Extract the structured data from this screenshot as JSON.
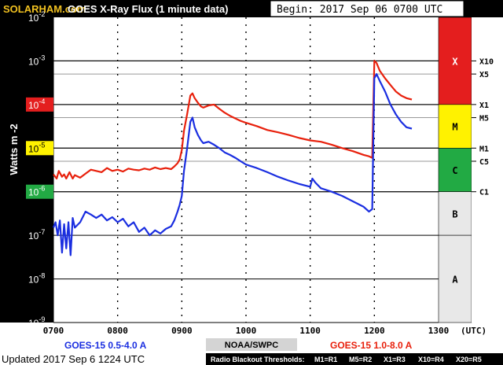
{
  "header": {
    "logo_text": "SOLARHAM.com",
    "title": "GOES X-Ray Flux (1 minute data)",
    "begin": "Begin:  2017 Sep 06 0700 UTC"
  },
  "footer": {
    "left_series": "GOES-15 0.5-4.0 A",
    "center": "NOAA/SWPC",
    "right_series": "GOES-15 1.0-8.0 A",
    "updated": "Updated 2017 Sep  6 1224 UTC",
    "blackout_label": "Radio Blackout Thresholds:",
    "blackout_scale": [
      "M1=R1",
      "M5=R2",
      "X1=R3",
      "X10=R4",
      "X20=R5"
    ]
  },
  "colors": {
    "long_channel": "#e8200c",
    "long_channel_peak": "#f2a020",
    "short_channel": "#1a2ee0",
    "short_channel_peak": "#5a1aa0",
    "class_x": "#e41e1e",
    "class_m": "#fff200",
    "class_c": "#22aa44",
    "class_ab": "#e8e8e8"
  },
  "chart_data": {
    "type": "line",
    "title": "GOES X-Ray Flux (1 minute data)",
    "xlabel": "(UTC)",
    "ylabel": "Watts m -2",
    "yscale": "log",
    "ylim": [
      1e-09,
      0.01
    ],
    "xlim": [
      "0700",
      "1300"
    ],
    "x_tick_labels": [
      "0700",
      "0800",
      "0900",
      "1000",
      "1100",
      "1200",
      "1300"
    ],
    "y_tick_labels": [
      {
        "base": "10",
        "exp": "-2"
      },
      {
        "base": "10",
        "exp": "-3"
      },
      {
        "base": "10",
        "exp": "-4"
      },
      {
        "base": "10",
        "exp": "-5"
      },
      {
        "base": "10",
        "exp": "-6"
      },
      {
        "base": "10",
        "exp": "-7"
      },
      {
        "base": "10",
        "exp": "-8"
      },
      {
        "base": "10",
        "exp": "-9"
      }
    ],
    "thresholds": [
      {
        "label": "X10",
        "value": 0.001
      },
      {
        "label": "X5",
        "value": 0.0005
      },
      {
        "label": "X1",
        "value": 0.0001
      },
      {
        "label": "M5",
        "value": 5e-05
      },
      {
        "label": "M1",
        "value": 1e-05
      },
      {
        "label": "C5",
        "value": 5e-06
      },
      {
        "label": "C1",
        "value": 1e-06
      }
    ],
    "classes": [
      {
        "label": "X",
        "low": 0.0001,
        "high": 0.01,
        "color": "#e41e1e"
      },
      {
        "label": "M",
        "low": 1e-05,
        "high": 0.0001,
        "color": "#fff200"
      },
      {
        "label": "C",
        "low": 1e-06,
        "high": 1e-05,
        "color": "#22aa44"
      },
      {
        "label": "B",
        "low": 1e-07,
        "high": 1e-06,
        "color": "#e8e8e8"
      },
      {
        "label": "A",
        "low": 1e-09,
        "high": 1e-07,
        "color": "#e8e8e8"
      }
    ],
    "series": [
      {
        "name": "GOES-15 1.0-8.0 A",
        "color": "#e8200c",
        "x": [
          "0700",
          "0703",
          "0705",
          "0708",
          "0710",
          "0712",
          "0715",
          "0718",
          "0720",
          "0725",
          "0730",
          "0735",
          "0740",
          "0745",
          "0750",
          "0755",
          "0800",
          "0805",
          "0810",
          "0815",
          "0820",
          "0825",
          "0830",
          "0835",
          "0840",
          "0845",
          "0850",
          "0853",
          "0856",
          "0858",
          "0900",
          "0902",
          "0905",
          "0908",
          "0910",
          "0912",
          "0915",
          "0918",
          "0920",
          "0925",
          "0930",
          "0935",
          "0940",
          "0945",
          "0950",
          "0955",
          "1000",
          "1010",
          "1020",
          "1030",
          "1040",
          "1050",
          "1100",
          "1110",
          "1120",
          "1130",
          "1140",
          "1150",
          "1155",
          "1158",
          "1200",
          "1202",
          "1205",
          "1210",
          "1215",
          "1220",
          "1225",
          "1230",
          "1235"
        ],
        "y": [
          2.5e-06,
          2e-06,
          3e-06,
          2.2e-06,
          2.5e-06,
          2e-06,
          2.8e-06,
          2e-06,
          2.4e-06,
          2.1e-06,
          2.6e-06,
          3.2e-06,
          3e-06,
          2.8e-06,
          3.5e-06,
          3e-06,
          3.2e-06,
          2.9e-06,
          3.4e-06,
          3.2e-06,
          3.1e-06,
          3.4e-06,
          3.2e-06,
          3.6e-06,
          3.3e-06,
          3.5e-06,
          3.3e-06,
          3.8e-06,
          4.5e-06,
          5.5e-06,
          9e-06,
          2.5e-05,
          6e-05,
          0.00016,
          0.00018,
          0.00014,
          0.00011,
          9e-05,
          8.5e-05,
          9.5e-05,
          0.0001,
          8e-05,
          6.5e-05,
          5.5e-05,
          4.8e-05,
          4.2e-05,
          3.8e-05,
          3.2e-05,
          2.6e-05,
          2.3e-05,
          2e-05,
          1.7e-05,
          1.5e-05,
          1.4e-05,
          1.2e-05,
          1e-05,
          8.5e-06,
          7e-06,
          6.5e-06,
          6e-06,
          0.001,
          0.0009,
          0.0006,
          0.0004,
          0.00028,
          0.0002,
          0.00016,
          0.00014,
          0.00013
        ]
      },
      {
        "name": "GOES-15 0.5-4.0 A",
        "color": "#1a2ee0",
        "x": [
          "0700",
          "0702",
          "0704",
          "0706",
          "0708",
          "0710",
          "0712",
          "0714",
          "0716",
          "0718",
          "0720",
          "0725",
          "0730",
          "0735",
          "0740",
          "0745",
          "0750",
          "0755",
          "0800",
          "0805",
          "0810",
          "0815",
          "0820",
          "0825",
          "0830",
          "0835",
          "0840",
          "0845",
          "0850",
          "0853",
          "0856",
          "0858",
          "0900",
          "0902",
          "0905",
          "0908",
          "0910",
          "0912",
          "0915",
          "0918",
          "0920",
          "0925",
          "0930",
          "0935",
          "0940",
          "0945",
          "0950",
          "0955",
          "1000",
          "1010",
          "1020",
          "1030",
          "1040",
          "1050",
          "1100",
          "1102",
          "1105",
          "1110",
          "1120",
          "1130",
          "1140",
          "1150",
          "1155",
          "1158",
          "1200",
          "1202",
          "1205",
          "1210",
          "1215",
          "1220",
          "1225",
          "1230",
          "1235"
        ],
        "y": [
          1.5e-07,
          2e-07,
          1e-07,
          2.2e-07,
          4e-08,
          1.8e-07,
          5e-08,
          2e-07,
          3.5e-08,
          2.5e-07,
          1.5e-07,
          2e-07,
          3.5e-07,
          3e-07,
          2.5e-07,
          3e-07,
          2.2e-07,
          2.6e-07,
          2e-07,
          2.4e-07,
          1.6e-07,
          2e-07,
          1.2e-07,
          1.5e-07,
          1e-07,
          1.3e-07,
          1.1e-07,
          1.4e-07,
          1.6e-07,
          2.2e-07,
          3.5e-07,
          5e-07,
          8e-07,
          3e-06,
          1e-05,
          4e-05,
          5e-05,
          3e-05,
          2e-05,
          1.5e-05,
          1.3e-05,
          1.4e-05,
          1.2e-05,
          1e-05,
          8e-06,
          7e-06,
          6e-06,
          5e-06,
          4.2e-06,
          3.5e-06,
          2.8e-06,
          2.2e-06,
          1.8e-06,
          1.5e-06,
          1.3e-06,
          2e-06,
          1.6e-06,
          1.2e-06,
          1e-06,
          8e-07,
          6e-07,
          4.5e-07,
          3.5e-07,
          4e-07,
          0.0004,
          0.0005,
          0.00035,
          0.0002,
          0.0001,
          6e-05,
          4e-05,
          3e-05,
          2.8e-05
        ]
      }
    ]
  }
}
